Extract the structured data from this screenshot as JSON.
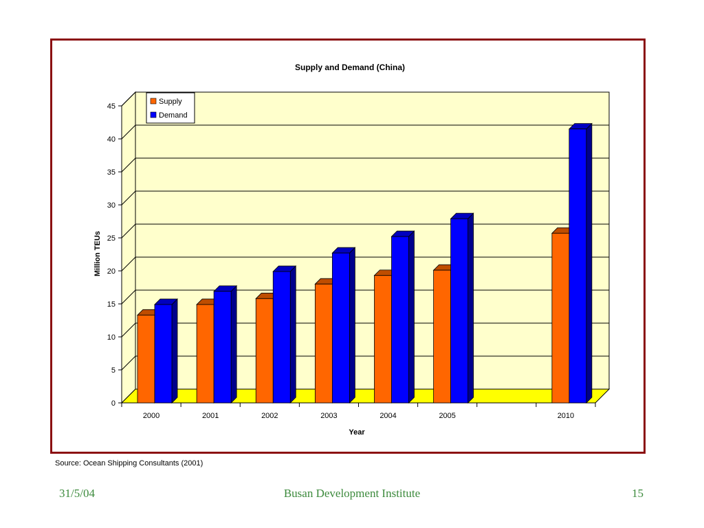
{
  "chart_data": {
    "type": "bar",
    "title": "Supply and Demand (China)",
    "xlabel": "Year",
    "ylabel": "Million TEUs",
    "categories": [
      "2000",
      "2001",
      "2002",
      "2003",
      "2004",
      "2005",
      "",
      "2010"
    ],
    "series": [
      {
        "name": "Supply",
        "color": "#ff6600",
        "values": [
          13.3,
          14.9,
          15.8,
          18.0,
          19.3,
          20.1,
          null,
          25.7
        ]
      },
      {
        "name": "Demand",
        "color": "#0000ff",
        "values": [
          14.9,
          16.9,
          19.9,
          22.7,
          25.2,
          27.9,
          null,
          41.5
        ]
      }
    ],
    "ylim": [
      0,
      45
    ],
    "yticks": [
      0,
      5,
      10,
      15,
      20,
      25,
      30,
      35,
      40,
      45
    ],
    "grid": true,
    "legend": "top-left",
    "style": {
      "plot_background": "#ffffcc",
      "floor": "#ffff00",
      "three_d": true
    }
  },
  "source_note": "Source: Ocean Shipping Consultants (2001)",
  "footer": {
    "date": "31/5/04",
    "organization": "Busan Development Institute",
    "page": "15"
  }
}
